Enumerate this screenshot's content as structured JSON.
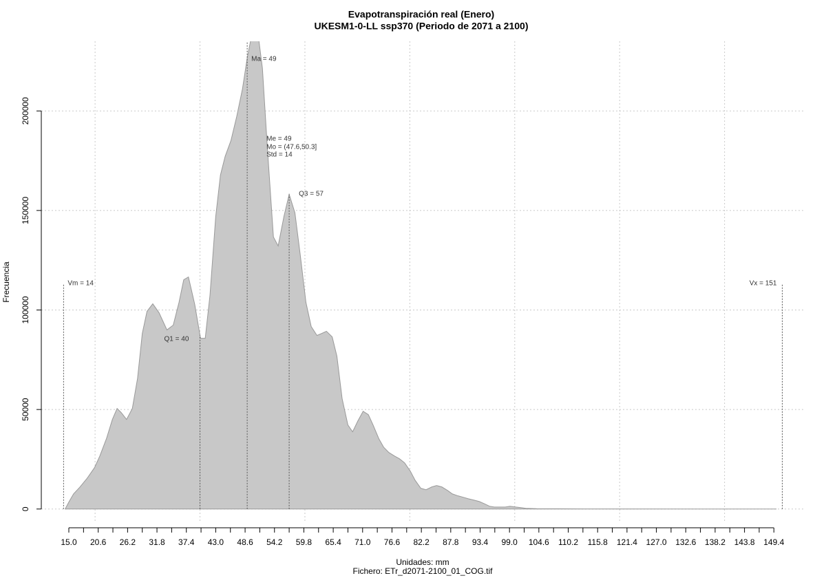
{
  "chart_data": {
    "type": "area",
    "title": "Evapotranspiración real (Enero)",
    "subtitle": "UKESM1-0-LL ssp370 (Periodo de 2071 a 2100)",
    "y_label": "Frecuencia",
    "x_label": "Unidades: mm",
    "caption": "Fichero: ETr_d2071-2100_01_COG.tif",
    "fill": "#c8c8c8",
    "stroke": "#999999",
    "grid": true,
    "xlim": [
      9.75,
      155.4
    ],
    "ylim": [
      -7000,
      235000
    ],
    "yticks": [
      0,
      50000,
      100000,
      150000,
      200000
    ],
    "ygrid": [
      0,
      50000,
      100000,
      150000,
      200000
    ],
    "xgrid": [
      20,
      40,
      60,
      80,
      100,
      120,
      140
    ],
    "xticks": [
      {
        "value": 15,
        "label": "15.0"
      },
      20.6,
      26.2,
      31.8,
      37.4,
      {
        "value": 43,
        "label": "43.0"
      },
      48.6,
      54.2,
      59.8,
      65.4,
      {
        "value": 71,
        "label": "71.0"
      },
      76.6,
      82.2,
      87.8,
      93.4,
      {
        "value": 99,
        "label": "99.0"
      },
      104.6,
      110.2,
      115.8,
      121.4,
      {
        "value": 127,
        "label": "127.0"
      },
      132.6,
      138.2,
      143.8,
      149.4
    ],
    "xminor": [
      17.8,
      23.4,
      29,
      34.6,
      40.2,
      45.8,
      51.4,
      57,
      62.6,
      68.2,
      73.8,
      79.4,
      85,
      90.6,
      96.2,
      101.8,
      107.4,
      113,
      118.6,
      124.2,
      129.8,
      135.4,
      141,
      146.6
    ],
    "x": [
      14.3,
      15.0,
      15.9,
      17.1,
      18.5,
      19.9,
      20.9,
      22.2,
      23.3,
      24.2,
      25.0,
      26.0,
      27.1,
      28.1,
      29.0,
      29.9,
      31.0,
      32.2,
      33.7,
      34.9,
      36.0,
      36.9,
      37.8,
      39.0,
      40.1,
      41.0,
      41.9,
      43.0,
      43.9,
      44.8,
      45.9,
      47.0,
      48.1,
      49.0,
      49.7,
      51.2,
      51.9,
      52.8,
      54.0,
      54.9,
      56.0,
      57.0,
      58.1,
      59.1,
      60.2,
      61.2,
      62.3,
      63.2,
      64.1,
      65.2,
      66.1,
      67.1,
      68.2,
      69.1,
      70.1,
      71.1,
      72.1,
      73.0,
      74.1,
      75.0,
      76.0,
      77.1,
      78.0,
      79.0,
      80.1,
      81.0,
      82.1,
      83.1,
      84.2,
      85.1,
      86.1,
      87.2,
      88.1,
      89.2,
      90.2,
      91.1,
      92.2,
      93.2,
      94.1,
      95.2,
      96.1,
      97.2,
      98.2,
      99.1,
      100.2,
      101.2,
      102.1,
      104.2,
      108.2,
      113.4,
      149.9
    ],
    "values": [
      0,
      3500,
      7600,
      11000,
      15500,
      20800,
      26600,
      35600,
      45000,
      50500,
      48400,
      45000,
      50500,
      65700,
      88200,
      99300,
      103100,
      98600,
      90000,
      92400,
      103800,
      115200,
      116600,
      102800,
      85800,
      85800,
      107300,
      147000,
      167800,
      177200,
      185100,
      197200,
      211100,
      226600,
      236000,
      236000,
      221500,
      183400,
      136700,
      132200,
      147000,
      158100,
      148800,
      128000,
      103800,
      91700,
      87200,
      88200,
      89300,
      86500,
      76800,
      55400,
      42200,
      38800,
      44300,
      49100,
      47400,
      42200,
      35300,
      31100,
      28400,
      26600,
      25300,
      23200,
      19000,
      14500,
      10400,
      9700,
      11100,
      11800,
      11100,
      9300,
      7600,
      6600,
      5900,
      5200,
      4500,
      3800,
      2800,
      1400,
      1000,
      1000,
      1000,
      1400,
      1000,
      700,
      350,
      170,
      140,
      50,
      0
    ],
    "stats": [
      {
        "label": "Vm = 14",
        "value": 14
      },
      {
        "label": "Q1 = 40",
        "value": 40
      },
      {
        "label": "Ma = 49",
        "value": 49
      },
      {
        "label": "Me = 49",
        "value": 49
      },
      {
        "label": "Mo = (47.6,50.3]",
        "value": 49
      },
      {
        "label": "Std = 14",
        "value": 14
      },
      {
        "label": "Q3 = 57",
        "value": 57
      },
      {
        "label": "Vx = 151",
        "value": 151
      }
    ]
  }
}
